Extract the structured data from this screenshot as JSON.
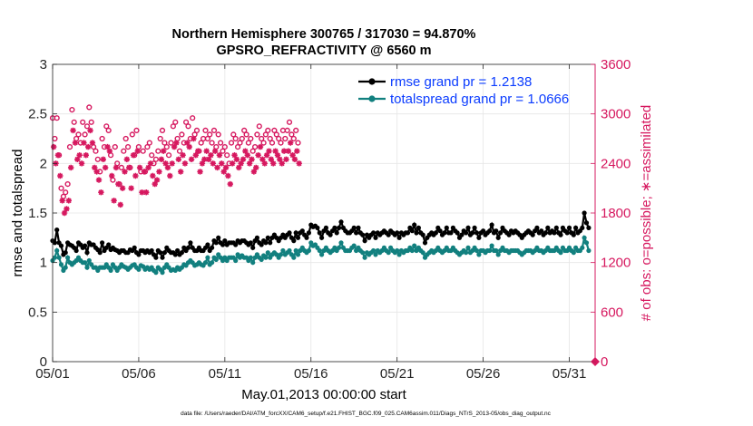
{
  "chart_data": {
    "type": "line",
    "title_line1": "Northern Hemisphere 300765 / 317030 = 94.870%",
    "title_line2": "GPSRO_REFRACTIVITY @ 6560 m",
    "xlabel": "May.01,2013 00:00:00 start",
    "ylabel_left": "rmse and totalspread",
    "ylabel_right": "# of obs: o=possible; ∗=assimilated",
    "footnote": "data file: /Users/raeder/DAI/ATM_forcXX/CAM6_setup/f.e21.FHIST_BGC.f09_025.CAM6assim.011/Diags_NTrS_2013-05/obs_diag_output.nc",
    "xlim": [
      0,
      31.5
    ],
    "ylim_left": [
      0,
      3
    ],
    "ylim_right": [
      0,
      3600
    ],
    "grid": true,
    "x_ticks": [
      0,
      5,
      10,
      15,
      20,
      25,
      30
    ],
    "x_tick_labels": [
      "05/01",
      "05/06",
      "05/11",
      "05/16",
      "05/21",
      "05/26",
      "05/31"
    ],
    "y_ticks_left": [
      0,
      0.5,
      1,
      1.5,
      2,
      2.5,
      3
    ],
    "y_tick_labels_left": [
      "0",
      "0.5",
      "1",
      "1.5",
      "2",
      "2.5",
      "3"
    ],
    "y_ticks_right": [
      0,
      600,
      1200,
      1800,
      2400,
      3000,
      3600
    ],
    "y_tick_labels_right": [
      "0",
      "600",
      "1200",
      "1800",
      "2400",
      "3000",
      "3600"
    ],
    "legend_location": "top-right",
    "legend": [
      "rmse grand pr = 1.2138",
      "totalspread grand pr = 1.0666"
    ],
    "colors": {
      "rmse": "#000000",
      "totalspread": "#12807f",
      "obs": "#d6185f",
      "grid": "#e6e6e6",
      "axis": "#262626"
    },
    "x_step_days": 0.125,
    "series": [
      {
        "name": "rmse",
        "axis": "left",
        "values": [
          1.22,
          1.2,
          1.33,
          1.2,
          1.17,
          1.08,
          1.1,
          1.2,
          1.18,
          1.17,
          1.15,
          1.12,
          1.2,
          1.18,
          1.15,
          1.17,
          1.1,
          1.2,
          1.18,
          1.18,
          1.15,
          1.13,
          1.1,
          1.2,
          1.12,
          1.15,
          1.18,
          1.13,
          1.15,
          1.13,
          1.12,
          1.1,
          1.12,
          1.12,
          1.1,
          1.1,
          1.13,
          1.12,
          1.15,
          1.1,
          1.08,
          1.12,
          1.12,
          1.1,
          1.12,
          1.1,
          1.12,
          1.08,
          1.05,
          1.12,
          1.1,
          1.05,
          1.1,
          1.15,
          1.12,
          1.1,
          1.1,
          1.08,
          1.12,
          1.08,
          1.1,
          1.15,
          1.12,
          1.15,
          1.2,
          1.15,
          1.12,
          1.12,
          1.15,
          1.12,
          1.12,
          1.15,
          1.18,
          1.12,
          1.15,
          1.22,
          1.2,
          1.25,
          1.2,
          1.18,
          1.22,
          1.18,
          1.2,
          1.2,
          1.2,
          1.18,
          1.22,
          1.2,
          1.22,
          1.22,
          1.2,
          1.18,
          1.2,
          1.15,
          1.22,
          1.25,
          1.2,
          1.18,
          1.22,
          1.2,
          1.25,
          1.2,
          1.25,
          1.28,
          1.25,
          1.22,
          1.25,
          1.28,
          1.25,
          1.28,
          1.3,
          1.25,
          1.22,
          1.3,
          1.25,
          1.3,
          1.32,
          1.28,
          1.25,
          1.3,
          1.38,
          1.36,
          1.37,
          1.35,
          1.3,
          1.25,
          1.32,
          1.35,
          1.3,
          1.28,
          1.32,
          1.35,
          1.3,
          1.35,
          1.41,
          1.35,
          1.32,
          1.3,
          1.3,
          1.32,
          1.35,
          1.3,
          1.35,
          1.3,
          1.28,
          1.22,
          1.28,
          1.25,
          1.28,
          1.3,
          1.25,
          1.3,
          1.28,
          1.3,
          1.32,
          1.3,
          1.28,
          1.32,
          1.3,
          1.28,
          1.3,
          1.25,
          1.3,
          1.28,
          1.3,
          1.3,
          1.35,
          1.32,
          1.38,
          1.3,
          1.35,
          1.3,
          1.28,
          1.2,
          1.25,
          1.28,
          1.3,
          1.28,
          1.3,
          1.35,
          1.32,
          1.28,
          1.3,
          1.35,
          1.3,
          1.3,
          1.35,
          1.32,
          1.3,
          1.25,
          1.28,
          1.32,
          1.3,
          1.35,
          1.28,
          1.3,
          1.35,
          1.3,
          1.25,
          1.3,
          1.32,
          1.28,
          1.3,
          1.32,
          1.38,
          1.3,
          1.32,
          1.25,
          1.3,
          1.35,
          1.32,
          1.3,
          1.28,
          1.32,
          1.3,
          1.32,
          1.3,
          1.28,
          1.25,
          1.28,
          1.3,
          1.32,
          1.3,
          1.28,
          1.32,
          1.35,
          1.3,
          1.32,
          1.28,
          1.3,
          1.35,
          1.3,
          1.32,
          1.3,
          1.35,
          1.3,
          1.28,
          1.35,
          1.32,
          1.3,
          1.35,
          1.3,
          1.28,
          1.35,
          1.3,
          1.32,
          1.35,
          1.5,
          1.4,
          1.35
        ]
      },
      {
        "name": "totalspread",
        "axis": "left",
        "values": [
          1.02,
          1.05,
          1.12,
          1.05,
          0.98,
          0.92,
          0.95,
          1.05,
          1.0,
          0.98,
          1.0,
          1.02,
          1.05,
          1.02,
          1.0,
          1.0,
          0.95,
          1.02,
          0.98,
          0.95,
          0.95,
          0.92,
          0.95,
          0.95,
          0.95,
          0.98,
          0.95,
          0.92,
          0.98,
          0.95,
          0.92,
          0.95,
          0.98,
          0.96,
          0.95,
          0.93,
          0.95,
          0.97,
          0.98,
          0.95,
          0.93,
          0.97,
          0.96,
          0.93,
          0.95,
          0.93,
          0.95,
          0.92,
          0.9,
          0.95,
          0.93,
          0.9,
          0.95,
          0.98,
          0.95,
          0.92,
          0.93,
          0.92,
          0.95,
          0.93,
          0.95,
          0.98,
          0.97,
          1.0,
          1.02,
          1.0,
          0.97,
          0.98,
          1.0,
          0.98,
          0.97,
          1.0,
          1.05,
          0.98,
          1.0,
          1.05,
          1.03,
          1.08,
          1.05,
          1.02,
          1.05,
          1.02,
          1.05,
          1.05,
          1.05,
          1.02,
          1.08,
          1.05,
          1.07,
          1.05,
          1.05,
          1.02,
          1.05,
          1.0,
          1.05,
          1.08,
          1.05,
          1.03,
          1.07,
          1.05,
          1.1,
          1.05,
          1.08,
          1.1,
          1.08,
          1.05,
          1.08,
          1.12,
          1.08,
          1.1,
          1.12,
          1.08,
          1.05,
          1.12,
          1.08,
          1.12,
          1.15,
          1.12,
          1.1,
          1.12,
          1.2,
          1.17,
          1.18,
          1.15,
          1.12,
          1.08,
          1.12,
          1.15,
          1.12,
          1.1,
          1.12,
          1.15,
          1.12,
          1.15,
          1.2,
          1.15,
          1.12,
          1.12,
          1.12,
          1.15,
          1.17,
          1.12,
          1.15,
          1.12,
          1.1,
          1.05,
          1.1,
          1.08,
          1.1,
          1.12,
          1.08,
          1.12,
          1.1,
          1.12,
          1.15,
          1.12,
          1.1,
          1.15,
          1.12,
          1.1,
          1.12,
          1.08,
          1.12,
          1.1,
          1.12,
          1.12,
          1.15,
          1.12,
          1.17,
          1.12,
          1.15,
          1.12,
          1.1,
          1.05,
          1.08,
          1.1,
          1.12,
          1.1,
          1.12,
          1.15,
          1.12,
          1.1,
          1.12,
          1.15,
          1.12,
          1.12,
          1.15,
          1.12,
          1.1,
          1.08,
          1.1,
          1.12,
          1.1,
          1.15,
          1.1,
          1.12,
          1.15,
          1.12,
          1.08,
          1.12,
          1.12,
          1.1,
          1.12,
          1.12,
          1.17,
          1.12,
          1.12,
          1.08,
          1.12,
          1.15,
          1.12,
          1.12,
          1.1,
          1.12,
          1.12,
          1.12,
          1.12,
          1.1,
          1.08,
          1.1,
          1.12,
          1.12,
          1.12,
          1.1,
          1.12,
          1.15,
          1.12,
          1.12,
          1.1,
          1.12,
          1.15,
          1.12,
          1.12,
          1.12,
          1.15,
          1.12,
          1.1,
          1.15,
          1.12,
          1.12,
          1.15,
          1.12,
          1.1,
          1.15,
          1.12,
          1.12,
          1.15,
          1.25,
          1.2,
          1.12
        ]
      },
      {
        "name": "obs_possible",
        "axis": "right",
        "marker": "circle",
        "x_offset": 0,
        "x_step": 0.125,
        "values": [
          2950,
          2700,
          2950,
          2500,
          2100,
          2000,
          2050,
          2150,
          2600,
          3050,
          2900,
          2700,
          2750,
          2650,
          2900,
          2750,
          2850,
          3080,
          2900,
          2600,
          2550,
          2450,
          2300,
          2700,
          2600,
          2850,
          2800,
          2500,
          2200,
          2600,
          2400,
          2150,
          2350,
          2550,
          2700,
          2600,
          2350,
          2750,
          2500,
          2800,
          2600,
          2300,
          2550,
          2300,
          2600,
          2650,
          2500,
          2400,
          2450,
          2550,
          2700,
          2800,
          2650,
          2600,
          2500,
          2650,
          2850,
          2900,
          2700,
          2550,
          2750,
          2650,
          2900,
          2850,
          2700,
          2950,
          2750,
          2800,
          2550,
          2650,
          2700,
          2800,
          2700,
          2750,
          2650,
          2800,
          2600,
          2750,
          2650,
          2550,
          2600,
          2500,
          2400,
          2650,
          2750,
          2700,
          2600,
          2650,
          2700,
          2800,
          2750,
          2650,
          2700,
          2550,
          2600,
          2750,
          2850,
          2700,
          2650,
          2750,
          2800,
          2700,
          2650,
          2800,
          2750,
          2700,
          2650,
          2800,
          2700,
          2800,
          2900,
          2750,
          2700,
          2800,
          2650
        ]
      },
      {
        "name": "obs_assimilated",
        "axis": "right",
        "marker": "star",
        "x_offset": 0.0625,
        "x_step": 0.125,
        "values": [
          2600,
          2400,
          2500,
          2250,
          1950,
          1800,
          1850,
          1950,
          2350,
          2800,
          2650,
          2450,
          2500,
          2400,
          2650,
          2500,
          2600,
          2800,
          2650,
          2350,
          2300,
          2200,
          2050,
          2450,
          2350,
          2600,
          2550,
          2250,
          1950,
          2350,
          2150,
          1900,
          2100,
          2300,
          2450,
          2350,
          2100,
          2500,
          2250,
          2550,
          2350,
          2050,
          2300,
          2050,
          2350,
          2400,
          2250,
          2150,
          2200,
          2300,
          2450,
          2550,
          2400,
          2350,
          2250,
          2400,
          2600,
          2650,
          2450,
          2300,
          2500,
          2400,
          2650,
          2600,
          2450,
          2700,
          2500,
          2550,
          2300,
          2400,
          2450,
          2550,
          2450,
          2500,
          2400,
          2550,
          2350,
          2500,
          2400,
          2300,
          2350,
          2250,
          2150,
          2400,
          2500,
          2450,
          2350,
          2400,
          2450,
          2550,
          2500,
          2400,
          2450,
          2300,
          2350,
          2500,
          2600,
          2450,
          2400,
          2500,
          2550,
          2450,
          2400,
          2550,
          2500,
          2450,
          2400,
          2550,
          2450,
          2550,
          2650,
          2500,
          2450,
          2550,
          2400
        ]
      },
      {
        "name": "obs_edge_point",
        "axis": "right",
        "marker": "filled-diamond",
        "x_offset": 31.5,
        "x_step": 0.125,
        "values": [
          0
        ]
      }
    ]
  }
}
